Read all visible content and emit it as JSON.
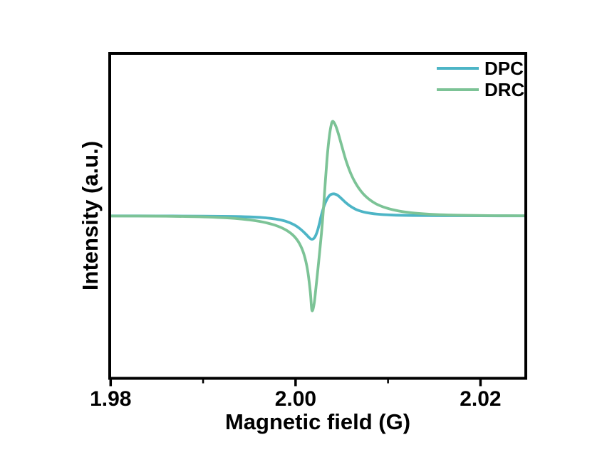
{
  "figure": {
    "background": "#ffffff",
    "axis_color": "#000000"
  },
  "chart_data": {
    "type": "line",
    "title": "",
    "xlabel": "Magnetic field (G)",
    "ylabel": "Intensity (a.u.)",
    "xlim": [
      1.9799,
      2.0249
    ],
    "ylim": [
      -1.72,
      1.72
    ],
    "x_major_ticks": [
      1.98,
      2.0,
      2.02
    ],
    "x_major_tick_labels": [
      "1.98",
      "2.00",
      "2.02"
    ],
    "x_minor_ticks": [
      1.99,
      2.01
    ],
    "y_ticks": [],
    "grid": false,
    "legend_position": "top-right",
    "legend_frame": false,
    "series": [
      {
        "name": "DPC",
        "color": "#4db5c6",
        "points": [
          [
            1.9799,
            0.0
          ],
          [
            1.985,
            -0.001
          ],
          [
            1.99,
            -0.003
          ],
          [
            1.993,
            -0.006
          ],
          [
            1.995,
            -0.011
          ],
          [
            1.9965,
            -0.019
          ],
          [
            1.9978,
            -0.033
          ],
          [
            1.9989,
            -0.056
          ],
          [
            1.9998,
            -0.092
          ],
          [
            2.0005,
            -0.138
          ],
          [
            2.0011,
            -0.192
          ],
          [
            2.0015,
            -0.233
          ],
          [
            2.00175,
            -0.248
          ],
          [
            2.002,
            -0.236
          ],
          [
            2.0022,
            -0.203
          ],
          [
            2.0024,
            -0.148
          ],
          [
            2.0026,
            -0.072
          ],
          [
            2.0028,
            0.012
          ],
          [
            2.0031,
            0.108
          ],
          [
            2.0034,
            0.176
          ],
          [
            2.0037,
            0.218
          ],
          [
            2.0041,
            0.233
          ],
          [
            2.0045,
            0.221
          ],
          [
            2.0049,
            0.189
          ],
          [
            2.0054,
            0.143
          ],
          [
            2.006,
            0.098
          ],
          [
            2.0067,
            0.061
          ],
          [
            2.0076,
            0.036
          ],
          [
            2.0088,
            0.019
          ],
          [
            2.0104,
            0.009
          ],
          [
            2.0126,
            0.004
          ],
          [
            2.016,
            0.002
          ],
          [
            2.02,
            0.001
          ],
          [
            2.0249,
            0.0
          ]
        ]
      },
      {
        "name": "DRC",
        "color": "#7cc396",
        "points": [
          [
            1.9799,
            -0.002
          ],
          [
            1.983,
            -0.002
          ],
          [
            1.986,
            -0.004
          ],
          [
            1.9885,
            -0.007
          ],
          [
            1.9905,
            -0.012
          ],
          [
            1.9925,
            -0.021
          ],
          [
            1.9942,
            -0.034
          ],
          [
            1.9957,
            -0.052
          ],
          [
            1.997,
            -0.077
          ],
          [
            1.9981,
            -0.11
          ],
          [
            1.999,
            -0.152
          ],
          [
            1.9998,
            -0.212
          ],
          [
            2.0004,
            -0.29
          ],
          [
            2.0009,
            -0.405
          ],
          [
            2.0013,
            -0.575
          ],
          [
            2.0016,
            -0.81
          ],
          [
            2.00177,
            -1.0
          ],
          [
            2.002,
            -0.935
          ],
          [
            2.0022,
            -0.765
          ],
          [
            2.0025,
            -0.485
          ],
          [
            2.0028,
            -0.185
          ],
          [
            2.003,
            0.055
          ],
          [
            2.0032,
            0.335
          ],
          [
            2.0034,
            0.6
          ],
          [
            2.0036,
            0.8
          ],
          [
            2.0038,
            0.935
          ],
          [
            2.004,
            1.0
          ],
          [
            2.0043,
            0.962
          ],
          [
            2.0046,
            0.878
          ],
          [
            2.005,
            0.74
          ],
          [
            2.0055,
            0.572
          ],
          [
            2.0061,
            0.42
          ],
          [
            2.0068,
            0.298
          ],
          [
            2.0076,
            0.205
          ],
          [
            2.0086,
            0.133
          ],
          [
            2.0098,
            0.084
          ],
          [
            2.0112,
            0.051
          ],
          [
            2.013,
            0.028
          ],
          [
            2.0152,
            0.014
          ],
          [
            2.018,
            0.006
          ],
          [
            2.0215,
            0.002
          ],
          [
            2.0249,
            0.001
          ]
        ]
      }
    ]
  }
}
